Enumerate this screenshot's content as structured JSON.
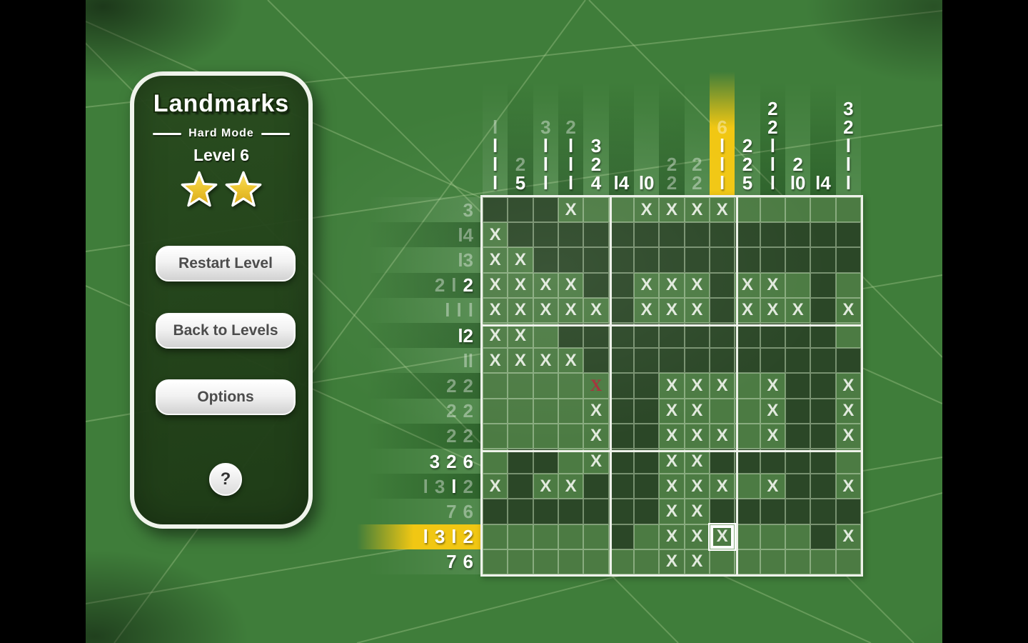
{
  "sidebar": {
    "title": "Landmarks",
    "mode": "Hard Mode",
    "level": "Level 6",
    "stars_earned": 2,
    "buttons": {
      "restart": "Restart Level",
      "back": "Back to Levels",
      "options": "Options",
      "help": "?"
    }
  },
  "board": {
    "size": 15,
    "cursor": {
      "row": 14,
      "col": 10
    },
    "mark_glyph": "X",
    "error_glyph": "X",
    "cell_legend": {
      "F": "filled",
      "E": "empty",
      "X": "marked-x",
      "R": "error-x",
      "S": "cursor-marked-x"
    },
    "cols_clues": [
      [
        {
          "v": 1,
          "done": true
        },
        {
          "v": 1,
          "done": false
        },
        {
          "v": 1,
          "done": false
        },
        {
          "v": 1,
          "done": false
        }
      ],
      [
        {
          "v": 2,
          "done": true
        },
        {
          "v": 5,
          "done": false
        }
      ],
      [
        {
          "v": 3,
          "done": true
        },
        {
          "v": 1,
          "done": false
        },
        {
          "v": 1,
          "done": false
        },
        {
          "v": 1,
          "done": false
        }
      ],
      [
        {
          "v": 2,
          "done": true
        },
        {
          "v": 1,
          "done": false
        },
        {
          "v": 1,
          "done": false
        },
        {
          "v": 1,
          "done": false
        }
      ],
      [
        {
          "v": 3,
          "done": false
        },
        {
          "v": 2,
          "done": false
        },
        {
          "v": 4,
          "done": false
        }
      ],
      [
        {
          "v": 14,
          "done": false
        }
      ],
      [
        {
          "v": 10,
          "done": false
        }
      ],
      [
        {
          "v": 2,
          "done": true
        },
        {
          "v": 2,
          "done": true
        }
      ],
      [
        {
          "v": 2,
          "done": true
        },
        {
          "v": 2,
          "done": true
        }
      ],
      [
        {
          "v": 6,
          "done": true
        },
        {
          "v": 1,
          "done": false
        },
        {
          "v": 1,
          "done": false
        },
        {
          "v": 1,
          "done": false
        }
      ],
      [
        {
          "v": 2,
          "done": false
        },
        {
          "v": 2,
          "done": false
        },
        {
          "v": 5,
          "done": false
        }
      ],
      [
        {
          "v": 2,
          "done": false
        },
        {
          "v": 2,
          "done": false
        },
        {
          "v": 1,
          "done": false
        },
        {
          "v": 1,
          "done": false
        },
        {
          "v": 1,
          "done": false
        }
      ],
      [
        {
          "v": 2,
          "done": false
        },
        {
          "v": 10,
          "done": false
        }
      ],
      [
        {
          "v": 14,
          "done": false
        }
      ],
      [
        {
          "v": 3,
          "done": false
        },
        {
          "v": 2,
          "done": false
        },
        {
          "v": 1,
          "done": false
        },
        {
          "v": 1,
          "done": false
        },
        {
          "v": 1,
          "done": false
        }
      ]
    ],
    "rows_clues": [
      [
        {
          "v": 3,
          "done": true
        }
      ],
      [
        {
          "v": 14,
          "done": true
        }
      ],
      [
        {
          "v": 13,
          "done": true
        }
      ],
      [
        {
          "v": 2,
          "done": true
        },
        {
          "v": 1,
          "done": true
        },
        {
          "v": 2,
          "done": false
        }
      ],
      [
        {
          "v": 1,
          "done": true
        },
        {
          "v": 1,
          "done": true
        },
        {
          "v": 1,
          "done": true
        }
      ],
      [
        {
          "v": 12,
          "done": false
        }
      ],
      [
        {
          "v": 11,
          "done": true
        }
      ],
      [
        {
          "v": 2,
          "done": true
        },
        {
          "v": 2,
          "done": true
        }
      ],
      [
        {
          "v": 2,
          "done": true
        },
        {
          "v": 2,
          "done": true
        }
      ],
      [
        {
          "v": 2,
          "done": true
        },
        {
          "v": 2,
          "done": true
        }
      ],
      [
        {
          "v": 3,
          "done": false
        },
        {
          "v": 2,
          "done": false
        },
        {
          "v": 6,
          "done": false
        }
      ],
      [
        {
          "v": 1,
          "done": true
        },
        {
          "v": 3,
          "done": true
        },
        {
          "v": 1,
          "done": false
        },
        {
          "v": 2,
          "done": true
        }
      ],
      [
        {
          "v": 7,
          "done": true
        },
        {
          "v": 6,
          "done": true
        }
      ],
      [
        {
          "v": 1,
          "done": false
        },
        {
          "v": 3,
          "done": false
        },
        {
          "v": 1,
          "done": false
        },
        {
          "v": 2,
          "done": false
        }
      ],
      [
        {
          "v": 7,
          "done": false
        },
        {
          "v": 6,
          "done": false
        }
      ]
    ],
    "cells": [
      "FFFXEEXXXXEEEEE",
      "XFFFFFFFFFFFFFF",
      "XXFFFFFFFFFFFFF",
      "XXXXFFXXXFXXEFE",
      "XXXXXFXXXFXXXFX",
      "XXEFFFFFFFFFFFE",
      "XXXXFFFFFFFFFFF",
      "EEEERFFXXXEXFFX",
      "EEEEXFFXXEEXFFX",
      "EEEEXFFXXXEXFFX",
      "EFFEXFFXXFFFFFE",
      "XFXXFFFXXXEXFFX",
      "FFFFFFFXXFFFFFF",
      "EEEEEFEXXSEEEFX",
      "EEEEEEEXXEEEEEE"
    ]
  },
  "colors": {
    "highlight": "#f1c713",
    "error_x": "#a5303a",
    "filled_cell": "#2b4727",
    "empty_cell": "#4c7b43",
    "mark_x": "#e2eade",
    "background_green": "#3f7d3a",
    "star_gold": "#eec833"
  }
}
